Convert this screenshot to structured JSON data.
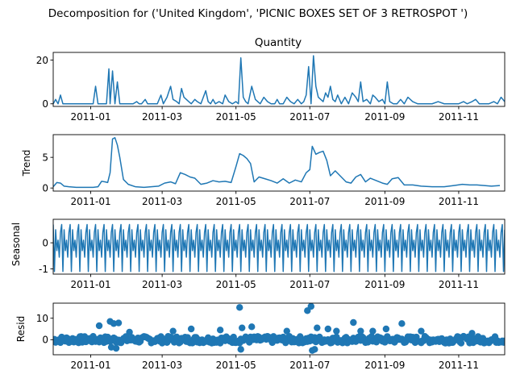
{
  "suptitle": "Decomposition for ('United Kingdom', 'PICNIC BOXES SET OF 3 RETROSPOT ')",
  "colors": {
    "series": "#1f77b4"
  },
  "chart_data": [
    {
      "type": "line",
      "title": "Quantity",
      "ylabel": "",
      "xlim": [
        "2010-12-01",
        "2011-12-09"
      ],
      "ylim": [
        -1.2,
        23.5
      ],
      "yticks": [
        0,
        20
      ],
      "xticks": [
        "2011-01",
        "2011-03",
        "2011-05",
        "2011-07",
        "2011-09",
        "2011-11"
      ],
      "series": [
        {
          "x": [
            "2010-12-01",
            "2010-12-03",
            "2010-12-05",
            "2010-12-07",
            "2010-12-09",
            "2010-12-12",
            "2010-12-15",
            "2010-12-20",
            "2010-12-28",
            "2011-01-03",
            "2011-01-05",
            "2011-01-07",
            "2011-01-09",
            "2011-01-12",
            "2011-01-14",
            "2011-01-16",
            "2011-01-17",
            "2011-01-19",
            "2011-01-21",
            "2011-01-23",
            "2011-01-25",
            "2011-01-27",
            "2011-01-30",
            "2011-02-02",
            "2011-02-05",
            "2011-02-08",
            "2011-02-10",
            "2011-02-12",
            "2011-02-15",
            "2011-02-17",
            "2011-02-20",
            "2011-02-23",
            "2011-02-25",
            "2011-02-28",
            "2011-03-02",
            "2011-03-05",
            "2011-03-08",
            "2011-03-10",
            "2011-03-13",
            "2011-03-15",
            "2011-03-17",
            "2011-03-19",
            "2011-03-21",
            "2011-03-23",
            "2011-03-25",
            "2011-03-28",
            "2011-03-30",
            "2011-04-02",
            "2011-04-06",
            "2011-04-08",
            "2011-04-10",
            "2011-04-12",
            "2011-04-14",
            "2011-04-17",
            "2011-04-20",
            "2011-04-22",
            "2011-04-25",
            "2011-04-28",
            "2011-05-01",
            "2011-05-03",
            "2011-05-05",
            "2011-05-07",
            "2011-05-09",
            "2011-05-11",
            "2011-05-14",
            "2011-05-17",
            "2011-05-19",
            "2011-05-21",
            "2011-05-24",
            "2011-05-27",
            "2011-05-30",
            "2011-06-02",
            "2011-06-04",
            "2011-06-06",
            "2011-06-09",
            "2011-06-12",
            "2011-06-15",
            "2011-06-18",
            "2011-06-21",
            "2011-06-24",
            "2011-06-26",
            "2011-06-28",
            "2011-06-30",
            "2011-07-02",
            "2011-07-04",
            "2011-07-06",
            "2011-07-08",
            "2011-07-10",
            "2011-07-12",
            "2011-07-14",
            "2011-07-16",
            "2011-07-18",
            "2011-07-20",
            "2011-07-22",
            "2011-07-24",
            "2011-07-27",
            "2011-07-30",
            "2011-08-02",
            "2011-08-05",
            "2011-08-08",
            "2011-08-10",
            "2011-08-12",
            "2011-08-14",
            "2011-08-17",
            "2011-08-20",
            "2011-08-22",
            "2011-08-24",
            "2011-08-27",
            "2011-08-30",
            "2011-09-01",
            "2011-09-03",
            "2011-09-05",
            "2011-09-08",
            "2011-09-11",
            "2011-09-14",
            "2011-09-17",
            "2011-09-20",
            "2011-09-24",
            "2011-09-28",
            "2011-10-02",
            "2011-10-06",
            "2011-10-10",
            "2011-10-15",
            "2011-10-20",
            "2011-10-25",
            "2011-10-28",
            "2011-11-01",
            "2011-11-05",
            "2011-11-08",
            "2011-11-12",
            "2011-11-15",
            "2011-11-18",
            "2011-11-22",
            "2011-11-26",
            "2011-11-30",
            "2011-12-03",
            "2011-12-06",
            "2011-12-09"
          ],
          "y": [
            0,
            2,
            0,
            4,
            0,
            0,
            0,
            0,
            0,
            0,
            8,
            0,
            0,
            0,
            0,
            16,
            0,
            15,
            0,
            10,
            0,
            0,
            0,
            0,
            0,
            1,
            0,
            0,
            2,
            0,
            0,
            0,
            0,
            4,
            0,
            3,
            8,
            2,
            1,
            0,
            7,
            3,
            2,
            1,
            0,
            2,
            1,
            0,
            6,
            1,
            0,
            2,
            0,
            1,
            0,
            4,
            1,
            0,
            1,
            0,
            21,
            3,
            1,
            0,
            8,
            2,
            1,
            0,
            3,
            1,
            0,
            0,
            2,
            0,
            0,
            3,
            1,
            0,
            2,
            0,
            1,
            4,
            17,
            0,
            22,
            8,
            3,
            2,
            1,
            5,
            3,
            8,
            2,
            1,
            4,
            0,
            3,
            0,
            5,
            3,
            1,
            10,
            1,
            2,
            0,
            4,
            3,
            1,
            2,
            0,
            10,
            1,
            0,
            0,
            2,
            0,
            3,
            1,
            0,
            0,
            0,
            0,
            1,
            0,
            0,
            0,
            0,
            1,
            0,
            1,
            2,
            0,
            0,
            0,
            1,
            0,
            3,
            1
          ]
        }
      ]
    },
    {
      "type": "line",
      "title": "",
      "ylabel": "Trend",
      "xlim": [
        "2010-12-01",
        "2011-12-09"
      ],
      "ylim": [
        -0.5,
        8.7
      ],
      "yticks": [
        0,
        5
      ],
      "xticks": [
        "2011-01",
        "2011-03",
        "2011-05",
        "2011-07",
        "2011-09",
        "2011-11"
      ],
      "series": [
        {
          "x": [
            "2010-12-01",
            "2010-12-04",
            "2010-12-07",
            "2010-12-10",
            "2010-12-14",
            "2010-12-20",
            "2010-12-28",
            "2011-01-03",
            "2011-01-07",
            "2011-01-10",
            "2011-01-13",
            "2011-01-15",
            "2011-01-17",
            "2011-01-19",
            "2011-01-21",
            "2011-01-23",
            "2011-01-25",
            "2011-01-28",
            "2011-02-01",
            "2011-02-07",
            "2011-02-14",
            "2011-02-20",
            "2011-02-26",
            "2011-03-03",
            "2011-03-08",
            "2011-03-12",
            "2011-03-16",
            "2011-03-20",
            "2011-03-24",
            "2011-03-28",
            "2011-04-02",
            "2011-04-07",
            "2011-04-12",
            "2011-04-17",
            "2011-04-22",
            "2011-04-27",
            "2011-05-01",
            "2011-05-04",
            "2011-05-07",
            "2011-05-10",
            "2011-05-13",
            "2011-05-16",
            "2011-05-20",
            "2011-05-25",
            "2011-05-30",
            "2011-06-04",
            "2011-06-09",
            "2011-06-14",
            "2011-06-19",
            "2011-06-24",
            "2011-06-28",
            "2011-07-01",
            "2011-07-03",
            "2011-07-06",
            "2011-07-09",
            "2011-07-12",
            "2011-07-15",
            "2011-07-18",
            "2011-07-22",
            "2011-07-26",
            "2011-07-31",
            "2011-08-04",
            "2011-08-08",
            "2011-08-12",
            "2011-08-16",
            "2011-08-20",
            "2011-08-25",
            "2011-08-30",
            "2011-09-03",
            "2011-09-07",
            "2011-09-12",
            "2011-09-17",
            "2011-09-24",
            "2011-10-01",
            "2011-10-10",
            "2011-10-20",
            "2011-10-28",
            "2011-11-04",
            "2011-11-10",
            "2011-11-16",
            "2011-11-22",
            "2011-11-28",
            "2011-12-05"
          ],
          "y": [
            0.2,
            0.9,
            0.8,
            0.3,
            0.2,
            0.1,
            0.1,
            0.1,
            0.2,
            1.1,
            1.0,
            0.9,
            2.5,
            8.0,
            8.2,
            7.0,
            5.0,
            1.4,
            0.6,
            0.2,
            0.1,
            0.2,
            0.3,
            0.8,
            1.0,
            0.7,
            2.5,
            2.2,
            1.8,
            1.6,
            0.6,
            0.8,
            1.2,
            1.0,
            1.1,
            0.9,
            3.5,
            5.6,
            5.3,
            4.8,
            4.0,
            1.0,
            1.8,
            1.5,
            1.2,
            0.8,
            1.5,
            0.8,
            1.3,
            1.0,
            2.5,
            3.0,
            6.8,
            5.5,
            5.8,
            6.0,
            4.5,
            2.0,
            2.8,
            2.0,
            1.0,
            0.8,
            1.8,
            2.2,
            1.0,
            1.6,
            1.2,
            0.8,
            0.6,
            1.5,
            1.7,
            0.5,
            0.5,
            0.3,
            0.2,
            0.2,
            0.4,
            0.6,
            0.5,
            0.5,
            0.4,
            0.3,
            0.4
          ]
        }
      ]
    },
    {
      "type": "line",
      "title": "",
      "ylabel": "Seasonal",
      "xlim": [
        "2010-12-01",
        "2011-12-09"
      ],
      "ylim": [
        -1.2,
        0.9
      ],
      "yticks": [
        -1,
        0
      ],
      "xticks": [
        "2011-01",
        "2011-03",
        "2011-05",
        "2011-07",
        "2011-09",
        "2011-11"
      ],
      "period_days": 7,
      "pattern": [
        0.7,
        -1.1,
        0.5,
        -0.3,
        0.1,
        -0.55,
        0.4
      ],
      "series": [
        {
          "x": [
            "2010-12-01",
            "2010-12-02",
            "2010-12-03",
            "2010-12-04",
            "2010-12-05",
            "2010-12-06",
            "2010-12-07"
          ],
          "y": [
            0.7,
            -1.1,
            0.5,
            -0.3,
            0.1,
            -0.55,
            0.4
          ]
        }
      ]
    },
    {
      "type": "scatter",
      "title": "",
      "ylabel": "Resid",
      "xlim": [
        "2010-12-01",
        "2011-12-09"
      ],
      "ylim": [
        -7,
        17
      ],
      "yticks": [
        0,
        10
      ],
      "xticks": [
        "2011-01",
        "2011-03",
        "2011-05",
        "2011-07",
        "2011-09",
        "2011-11"
      ],
      "zero_line": true,
      "series": [
        {
          "x": [
            "2011-01-08",
            "2011-01-17",
            "2011-01-18",
            "2011-01-20",
            "2011-01-22",
            "2011-01-24",
            "2011-02-02",
            "2011-03-10",
            "2011-03-25",
            "2011-04-18",
            "2011-05-04",
            "2011-05-05",
            "2011-05-06",
            "2011-05-14",
            "2011-06-12",
            "2011-06-29",
            "2011-07-02",
            "2011-07-03",
            "2011-07-05",
            "2011-07-07",
            "2011-07-16",
            "2011-07-23",
            "2011-08-06",
            "2011-08-12",
            "2011-08-22",
            "2011-09-02",
            "2011-09-15",
            "2011-10-01",
            "2011-11-12"
          ],
          "y": [
            6.5,
            8.5,
            -3.5,
            7.5,
            -4.0,
            7.8,
            3.5,
            4.0,
            5.0,
            4.5,
            15.0,
            -4.5,
            5.5,
            6.0,
            4.0,
            13.5,
            15.5,
            -5.0,
            -4.5,
            5.5,
            5.0,
            4.0,
            8.0,
            4.0,
            4.0,
            5.0,
            7.5,
            4.0,
            3.0
          ]
        }
      ]
    }
  ]
}
